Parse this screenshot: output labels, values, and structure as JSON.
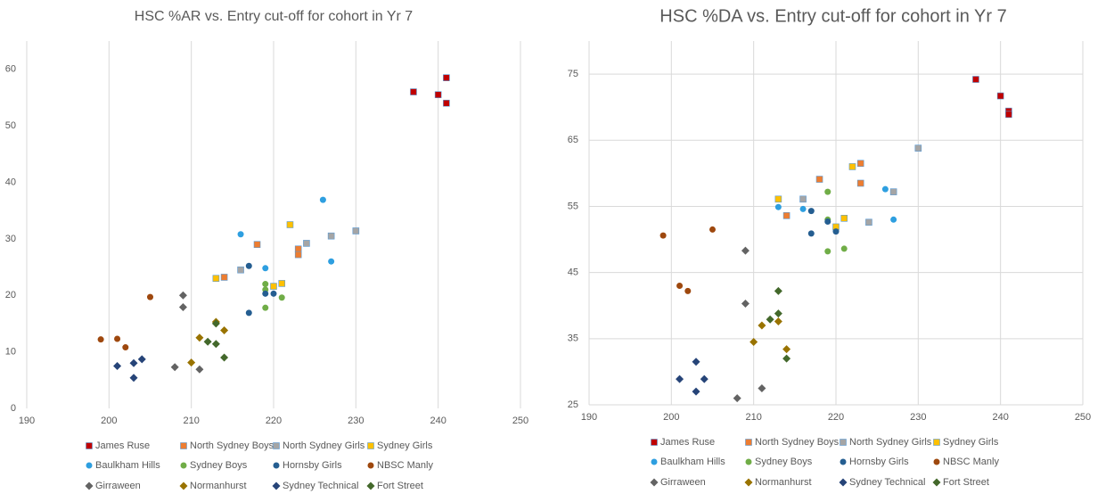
{
  "chart_data": [
    {
      "type": "scatter",
      "title": "HSC %AR vs. Entry cut-off for cohort in Yr 7",
      "xlim": [
        190,
        250
      ],
      "xticks": [
        190,
        200,
        210,
        220,
        230,
        240,
        250
      ],
      "ylim": [
        0,
        65
      ],
      "yticks": [
        0,
        10,
        20,
        30,
        40,
        50,
        60
      ],
      "grid": [
        "x"
      ],
      "series": [
        {
          "name": "James Ruse",
          "color": "#c00000",
          "marker": "square",
          "x": [
            237,
            240,
            241,
            241
          ],
          "values": [
            56,
            55.5,
            58.5,
            54
          ]
        },
        {
          "name": "North Sydney Boys",
          "color": "#ed7d31",
          "marker": "square",
          "x": [
            214,
            218,
            223,
            223
          ],
          "values": [
            23.2,
            29,
            28.2,
            27.2
          ]
        },
        {
          "name": "North Sydney Girls",
          "color": "#a5a5a5",
          "marker": "square",
          "x": [
            216,
            224,
            227,
            230
          ],
          "values": [
            24.5,
            29.2,
            30.5,
            31.4
          ]
        },
        {
          "name": "Sydney Girls",
          "color": "#ffc000",
          "marker": "square",
          "x": [
            213,
            220,
            221,
            222
          ],
          "values": [
            23,
            21.6,
            22.1,
            32.5
          ]
        },
        {
          "name": "Baulkham Hills",
          "color": "#2e9fe0",
          "marker": "circle",
          "x": [
            216,
            219,
            226,
            227
          ],
          "values": [
            30.8,
            24.8,
            36.9,
            26
          ]
        },
        {
          "name": "Sydney Boys",
          "color": "#70ad47",
          "marker": "circle",
          "x": [
            219,
            219,
            219,
            221
          ],
          "values": [
            22,
            21,
            17.8,
            19.6
          ]
        },
        {
          "name": "Hornsby Girls",
          "color": "#255e91",
          "marker": "circle",
          "x": [
            217,
            217,
            219,
            220
          ],
          "values": [
            25.2,
            16.9,
            20.3,
            20.3
          ]
        },
        {
          "name": "NBSC Manly",
          "color": "#9e480e",
          "marker": "circle",
          "x": [
            199,
            201,
            202,
            205
          ],
          "values": [
            12.2,
            12.3,
            10.8,
            19.7
          ]
        },
        {
          "name": "Girraween",
          "color": "#636363",
          "marker": "diamond",
          "x": [
            208,
            209,
            209,
            211
          ],
          "values": [
            7.3,
            20,
            17.9,
            6.9
          ]
        },
        {
          "name": "Normanhurst",
          "color": "#997300",
          "marker": "diamond",
          "x": [
            210,
            211,
            213,
            214
          ],
          "values": [
            8.1,
            12.5,
            15.3,
            13.8
          ]
        },
        {
          "name": "Sydney Technical",
          "color": "#264478",
          "marker": "diamond",
          "x": [
            201,
            203,
            203,
            204
          ],
          "values": [
            7.5,
            8,
            5.4,
            8.7
          ]
        },
        {
          "name": "Fort Street",
          "color": "#43682b",
          "marker": "diamond",
          "x": [
            212,
            213,
            213,
            214
          ],
          "values": [
            11.8,
            11.4,
            15,
            9
          ]
        }
      ]
    },
    {
      "type": "scatter",
      "title": "HSC %DA vs. Entry cut-off for cohort in Yr 7",
      "xlim": [
        190,
        250
      ],
      "xticks": [
        190,
        200,
        210,
        220,
        230,
        240,
        250
      ],
      "ylim": [
        25,
        80
      ],
      "yticks": [
        25,
        35,
        45,
        55,
        65,
        75
      ],
      "grid": [
        "x",
        "y"
      ],
      "series": [
        {
          "name": "James Ruse",
          "color": "#c00000",
          "marker": "square",
          "x": [
            237,
            240,
            241,
            241
          ],
          "values": [
            74.2,
            71.7,
            69.4,
            68.9
          ]
        },
        {
          "name": "North Sydney Boys",
          "color": "#ed7d31",
          "marker": "square",
          "x": [
            214,
            218,
            223,
            223
          ],
          "values": [
            53.6,
            59.1,
            61.5,
            58.5
          ]
        },
        {
          "name": "North Sydney Girls",
          "color": "#a5a5a5",
          "marker": "square",
          "x": [
            216,
            224,
            227,
            230
          ],
          "values": [
            56.1,
            52.6,
            57.2,
            63.8
          ]
        },
        {
          "name": "Sydney Girls",
          "color": "#ffc000",
          "marker": "square",
          "x": [
            213,
            220,
            221,
            222
          ],
          "values": [
            56.1,
            51.9,
            53.2,
            61
          ]
        },
        {
          "name": "Baulkham Hills",
          "color": "#2e9fe0",
          "marker": "circle",
          "x": [
            213,
            216,
            226,
            227
          ],
          "values": [
            54.9,
            54.6,
            57.6,
            53
          ]
        },
        {
          "name": "Sydney Boys",
          "color": "#70ad47",
          "marker": "circle",
          "x": [
            219,
            219,
            219,
            221
          ],
          "values": [
            57.2,
            53,
            48.2,
            48.6
          ]
        },
        {
          "name": "Hornsby Girls",
          "color": "#255e91",
          "marker": "circle",
          "x": [
            217,
            217,
            219,
            220
          ],
          "values": [
            54.3,
            50.9,
            52.7,
            51.2
          ]
        },
        {
          "name": "NBSC Manly",
          "color": "#9e480e",
          "marker": "circle",
          "x": [
            199,
            201,
            202,
            205
          ],
          "values": [
            50.6,
            43,
            42.2,
            51.5
          ]
        },
        {
          "name": "Girraween",
          "color": "#636363",
          "marker": "diamond",
          "x": [
            208,
            209,
            209,
            211
          ],
          "values": [
            26,
            48.3,
            40.3,
            27.5
          ]
        },
        {
          "name": "Normanhurst",
          "color": "#997300",
          "marker": "diamond",
          "x": [
            210,
            211,
            213,
            214
          ],
          "values": [
            34.5,
            37,
            37.6,
            33.4
          ]
        },
        {
          "name": "Sydney Technical",
          "color": "#264478",
          "marker": "diamond",
          "x": [
            201,
            203,
            203,
            204
          ],
          "values": [
            28.9,
            31.5,
            27,
            28.9
          ]
        },
        {
          "name": "Fort Street",
          "color": "#43682b",
          "marker": "diamond",
          "x": [
            212,
            213,
            213,
            214
          ],
          "values": [
            37.9,
            42.2,
            38.8,
            32
          ]
        }
      ]
    }
  ]
}
